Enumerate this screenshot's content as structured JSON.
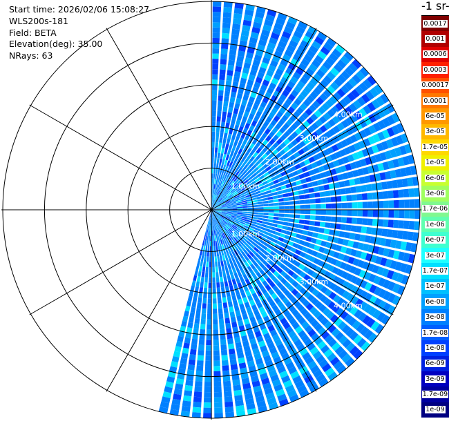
{
  "header": {
    "start_time": "Start time: 2026/02/06 15:08:27",
    "instrument": "WLS200s-181",
    "field": "Field: BETA",
    "elevation": "Elevation(deg): 35.00",
    "nrays": "NRays: 63"
  },
  "colorbar": {
    "unit_title": "-1 sr-",
    "levels": [
      {
        "label": "0.0017",
        "color": "#800000"
      },
      {
        "label": "0.001",
        "color": "#b00000"
      },
      {
        "label": "0.0006",
        "color": "#e00000"
      },
      {
        "label": "0.0003",
        "color": "#ff2000"
      },
      {
        "label": "0.00017",
        "color": "#ff5000"
      },
      {
        "label": "0.0001",
        "color": "#ff7800"
      },
      {
        "label": "6e-05",
        "color": "#ff9800"
      },
      {
        "label": "3e-05",
        "color": "#ffb800"
      },
      {
        "label": "1.7e-05",
        "color": "#ffd800"
      },
      {
        "label": "1e-05",
        "color": "#f0f000"
      },
      {
        "label": "6e-06",
        "color": "#c8ff30"
      },
      {
        "label": "3e-06",
        "color": "#a0ff60"
      },
      {
        "label": "1.7e-06",
        "color": "#80f890"
      },
      {
        "label": "1e-06",
        "color": "#60ffb0"
      },
      {
        "label": "6e-07",
        "color": "#40ffd0"
      },
      {
        "label": "3e-07",
        "color": "#20ffff"
      },
      {
        "label": "1.7e-07",
        "color": "#00e0ff"
      },
      {
        "label": "1e-07",
        "color": "#00c0ff"
      },
      {
        "label": "6e-08",
        "color": "#00a0ff"
      },
      {
        "label": "3e-08",
        "color": "#0080ff"
      },
      {
        "label": "1.7e-08",
        "color": "#0060ff"
      },
      {
        "label": "1e-08",
        "color": "#0040ff"
      },
      {
        "label": "6e-09",
        "color": "#0020e0"
      },
      {
        "label": "3e-09",
        "color": "#0000c0"
      },
      {
        "label": "1.7e-09",
        "color": "#0000a0"
      },
      {
        "label": "1e-09",
        "color": "#000080"
      }
    ]
  },
  "chart_data": {
    "type": "heatmap",
    "projection": "polar-ppi",
    "field": "BETA",
    "elevation_deg": 35.0,
    "nrays": 63,
    "max_range_km": 5.0,
    "azimuth_start_deg": 0,
    "azimuth_end_deg": 195,
    "range_ring_labels": [
      "1.00km",
      "2.00km",
      "3.00km",
      "4.00km"
    ],
    "range_ring_km": [
      1,
      2,
      3,
      4
    ],
    "typical_value_class": "3e-08",
    "value_mix": [
      {
        "class": "3e-08",
        "share": 0.55
      },
      {
        "class": "6e-08",
        "share": 0.25
      },
      {
        "class": "1e-08",
        "share": 0.12
      },
      {
        "class": "1.7e-07",
        "share": 0.08
      }
    ]
  }
}
